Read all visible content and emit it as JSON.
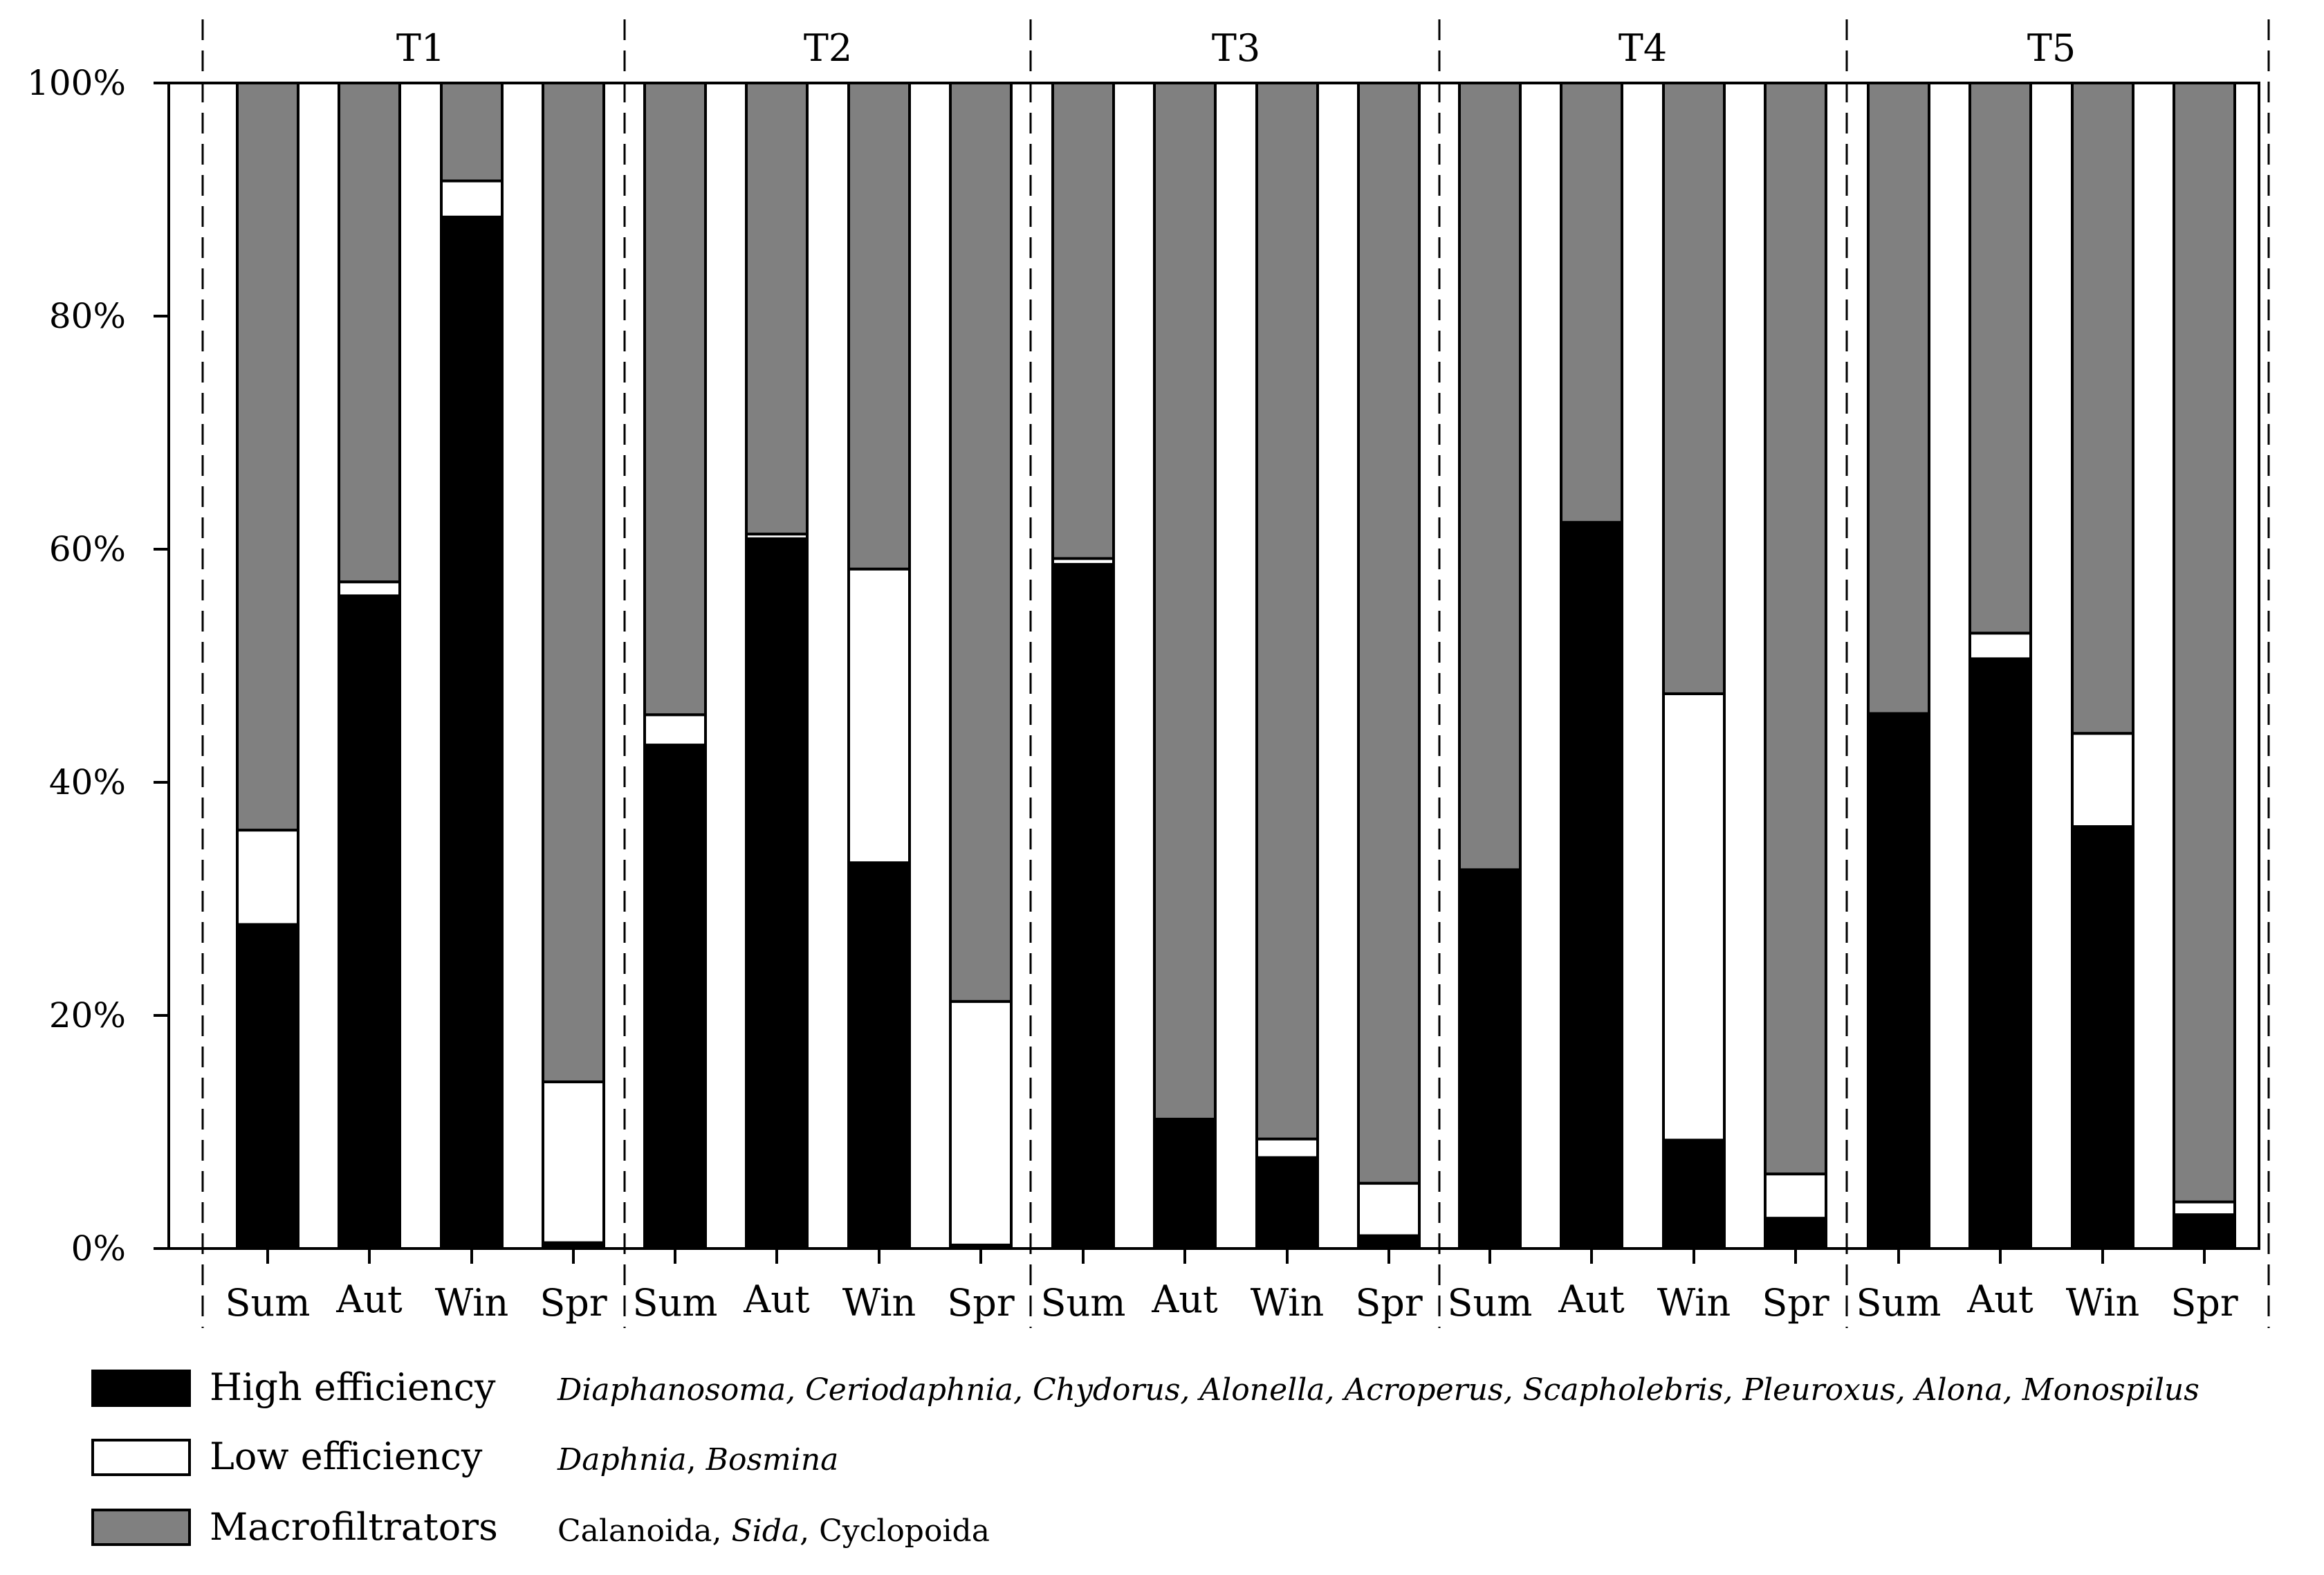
{
  "chart_data": {
    "type": "bar",
    "stacked": true,
    "percent": true,
    "ylim": [
      0,
      100
    ],
    "y_ticks": [
      "0%",
      "20%",
      "40%",
      "60%",
      "80%",
      "100%"
    ],
    "groups": [
      "T1",
      "T2",
      "T3",
      "T4",
      "T5"
    ],
    "seasons": [
      "Sum",
      "Aut",
      "Win",
      "Spr"
    ],
    "series": [
      {
        "name": "High efficiency",
        "color": "#000000",
        "taxa": [
          "Diaphanosoma, Ceriodaphnia, Chydorus, Alonella, Acroperus, Scapholebris, Pleuroxus, Alona, Monospilus"
        ],
        "values": [
          27.8,
          56.0,
          88.5,
          0.5,
          43.2,
          60.9,
          33.1,
          0.3,
          58.7,
          11.1,
          7.8,
          1.1,
          32.5,
          62.3,
          9.3,
          2.6,
          45.9,
          50.6,
          36.2,
          2.9
        ]
      },
      {
        "name": "Low efficiency",
        "color": "#ffffff",
        "taxa": [
          "Daphnia",
          "Bosmina"
        ],
        "values": [
          8.1,
          1.2,
          3.1,
          13.8,
          2.6,
          0.4,
          25.2,
          20.9,
          0.5,
          0.0,
          1.6,
          4.5,
          0.0,
          0.0,
          38.3,
          3.8,
          0.0,
          2.2,
          8.0,
          1.1
        ]
      },
      {
        "name": "Macrofiltrators",
        "color": "#808080",
        "taxa": [
          "Calanoida, ",
          "Sida",
          ", Cyclopoida"
        ],
        "values": [
          64.1,
          42.8,
          8.4,
          85.7,
          54.2,
          38.7,
          41.7,
          78.8,
          40.8,
          88.9,
          90.6,
          94.4,
          67.5,
          37.7,
          52.4,
          93.6,
          54.1,
          47.2,
          55.8,
          96.0
        ]
      }
    ]
  }
}
